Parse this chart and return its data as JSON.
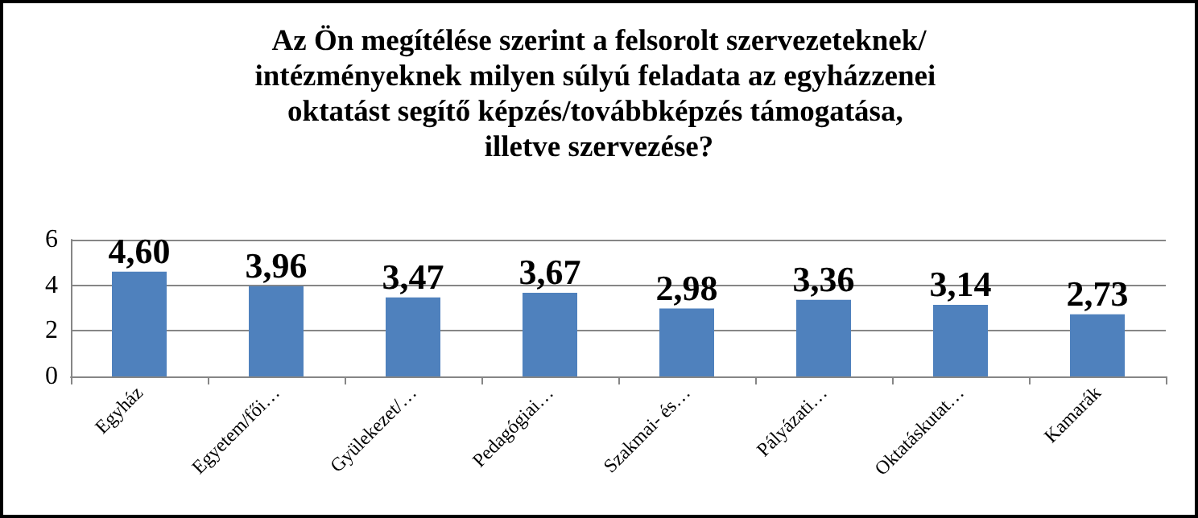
{
  "chart_data": {
    "type": "bar",
    "title": "Az Ön megítélése szerint a felsorolt szervezeteknek/intézményeknek milyen súlyú feladata az egyházzenei oktatást segítő képzés/továbbképzés támogatása, illetve szervezése?",
    "categories": [
      "Egyház",
      "Egyetem/fői…",
      "Gyülekezet/…",
      "Pedagógiai…",
      "Szakmai- és…",
      "Pályázati…",
      "Oktatáskutat…",
      "Kamarák"
    ],
    "values": [
      4.6,
      3.96,
      3.47,
      3.67,
      2.98,
      3.36,
      3.14,
      2.73
    ],
    "value_labels": [
      "4,60",
      "3,96",
      "3,47",
      "3,67",
      "2,98",
      "3,36",
      "3,14",
      "2,73"
    ],
    "color": "#4f81bd",
    "ylim": [
      0,
      6
    ],
    "yticks": [
      0,
      2,
      4,
      6
    ],
    "grid": "y"
  }
}
